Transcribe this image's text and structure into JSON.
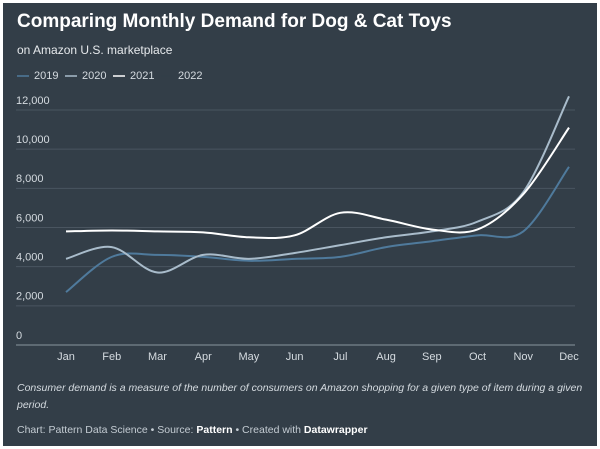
{
  "chart_data": {
    "type": "line",
    "title": "Comparing Monthly Demand for Dog & Cat Toys",
    "subtitle": "on Amazon U.S. marketplace",
    "categories": [
      "Jan",
      "Feb",
      "Mar",
      "Apr",
      "May",
      "Jun",
      "Jul",
      "Aug",
      "Sep",
      "Oct",
      "Nov",
      "Dec"
    ],
    "series": [
      {
        "name": "2019",
        "color": "#4f7a9c",
        "values": [
          2700,
          4500,
          4600,
          4500,
          4300,
          4400,
          4500,
          5000,
          5300,
          5600,
          5800,
          9100
        ]
      },
      {
        "name": "2020",
        "color": "#a9bccb",
        "values": [
          4400,
          5000,
          3700,
          4600,
          4400,
          4700,
          5100,
          5500,
          5800,
          6300,
          7800,
          12700
        ]
      },
      {
        "name": "2021",
        "color": "#ffffff",
        "values": [
          5800,
          5850,
          5800,
          5750,
          5500,
          5600,
          6750,
          6400,
          5900,
          5900,
          7700,
          11100
        ]
      },
      {
        "name": "2022",
        "color": "#333e48",
        "values": [
          null,
          null,
          null,
          null,
          null,
          null,
          null,
          null,
          null,
          null,
          null,
          null
        ]
      }
    ],
    "ylim": [
      0,
      12700
    ],
    "yticks": [
      0,
      {
        "value": 2000,
        "label": "2,000"
      },
      {
        "value": 4000,
        "label": "4,000"
      },
      {
        "value": 6000,
        "label": "6,000"
      },
      {
        "value": 8000,
        "label": "8,000"
      },
      {
        "value": 10000,
        "label": "10,000"
      },
      {
        "value": 12000,
        "label": "12,000"
      }
    ],
    "grid": true,
    "note": [
      "Consumer demand is a measure of the number of consumers on Amazon shopping for a given type of item during a given",
      "period."
    ],
    "credit": [
      "Chart: Pattern Data Science • Source: ",
      "Pattern",
      " • Created with ",
      "Datawrapper"
    ]
  }
}
